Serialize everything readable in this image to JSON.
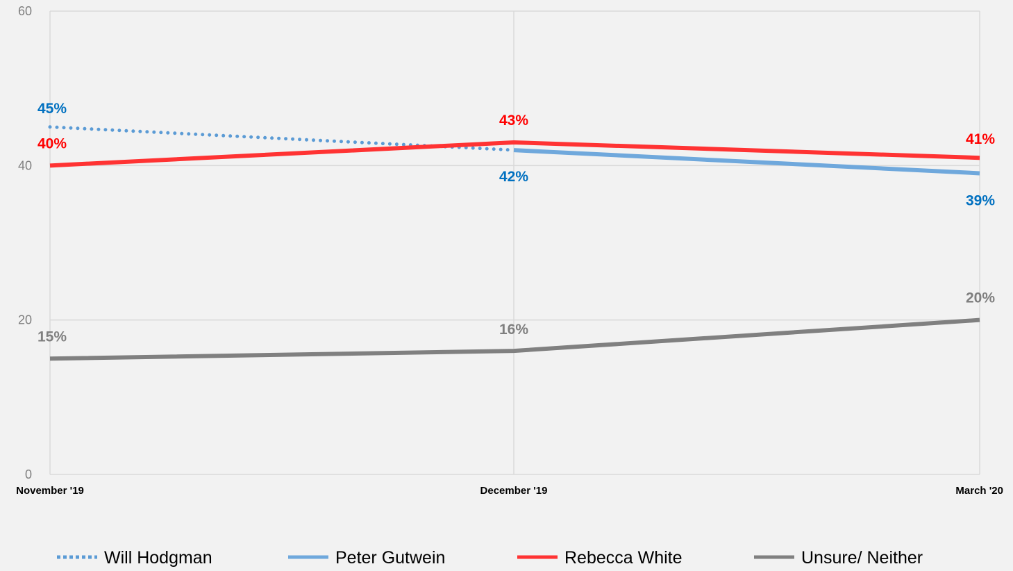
{
  "chart_data": {
    "type": "line",
    "categories": [
      "November '19",
      "December '19",
      "March '20"
    ],
    "ylim": [
      0,
      60
    ],
    "yticks": [
      0,
      20,
      40,
      60
    ],
    "grid": true,
    "legend_position": "bottom",
    "series": [
      {
        "name": "Will Hodgman",
        "color": "#5b9bd5",
        "style": "dotted",
        "values": [
          45,
          42,
          null
        ],
        "labels": [
          "45%",
          null,
          null
        ],
        "label_color": "#0070c0"
      },
      {
        "name": "Peter Gutwein",
        "color": "#6fa8dc",
        "style": "solid",
        "values": [
          null,
          42,
          39
        ],
        "labels": [
          null,
          "42%",
          "39%"
        ],
        "label_color": "#0070c0"
      },
      {
        "name": "Rebecca White",
        "color": "#ff3333",
        "style": "solid",
        "values": [
          40,
          43,
          41
        ],
        "labels": [
          "40%",
          "43%",
          "41%"
        ],
        "label_color": "#ff0000"
      },
      {
        "name": "Unsure/ Neither",
        "color": "#808080",
        "style": "solid",
        "values": [
          15,
          16,
          20
        ],
        "labels": [
          "15%",
          "16%",
          "20%"
        ],
        "label_color": "#7f7f7f"
      }
    ]
  }
}
